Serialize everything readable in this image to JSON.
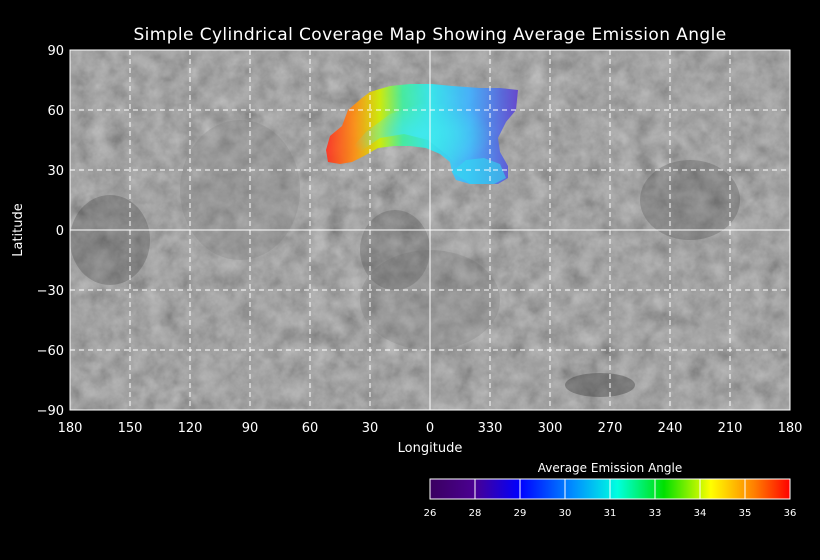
{
  "chart_data": {
    "type": "map",
    "title": "Simple Cylindrical Coverage Map Showing Average Emission Angle",
    "xlabel": "Longitude",
    "ylabel": "Latitude",
    "x_ticks": [
      "180",
      "150",
      "120",
      "90",
      "60",
      "30",
      "0",
      "330",
      "300",
      "270",
      "240",
      "210",
      "180"
    ],
    "y_ticks": [
      "90",
      "60",
      "30",
      "0",
      "−30",
      "−60",
      "−90"
    ],
    "ylim": [
      -90,
      90
    ],
    "grid": true,
    "projection": "simple cylindrical",
    "colorbar": {
      "title": "Average Emission Angle",
      "ticks": [
        "26",
        "28",
        "29",
        "30",
        "31",
        "33",
        "34",
        "35",
        "36"
      ],
      "range": [
        26,
        36
      ],
      "stops": [
        "#4a0070",
        "#0000ff",
        "#00a0ff",
        "#00ffd0",
        "#00e000",
        "#ffff00",
        "#ff8000",
        "#ff0000"
      ]
    },
    "coverage": {
      "lat_range": [
        24,
        74
      ],
      "lon_range_east": [
        20,
        50
      ],
      "lon_range_west": [
        315,
        360
      ]
    }
  }
}
